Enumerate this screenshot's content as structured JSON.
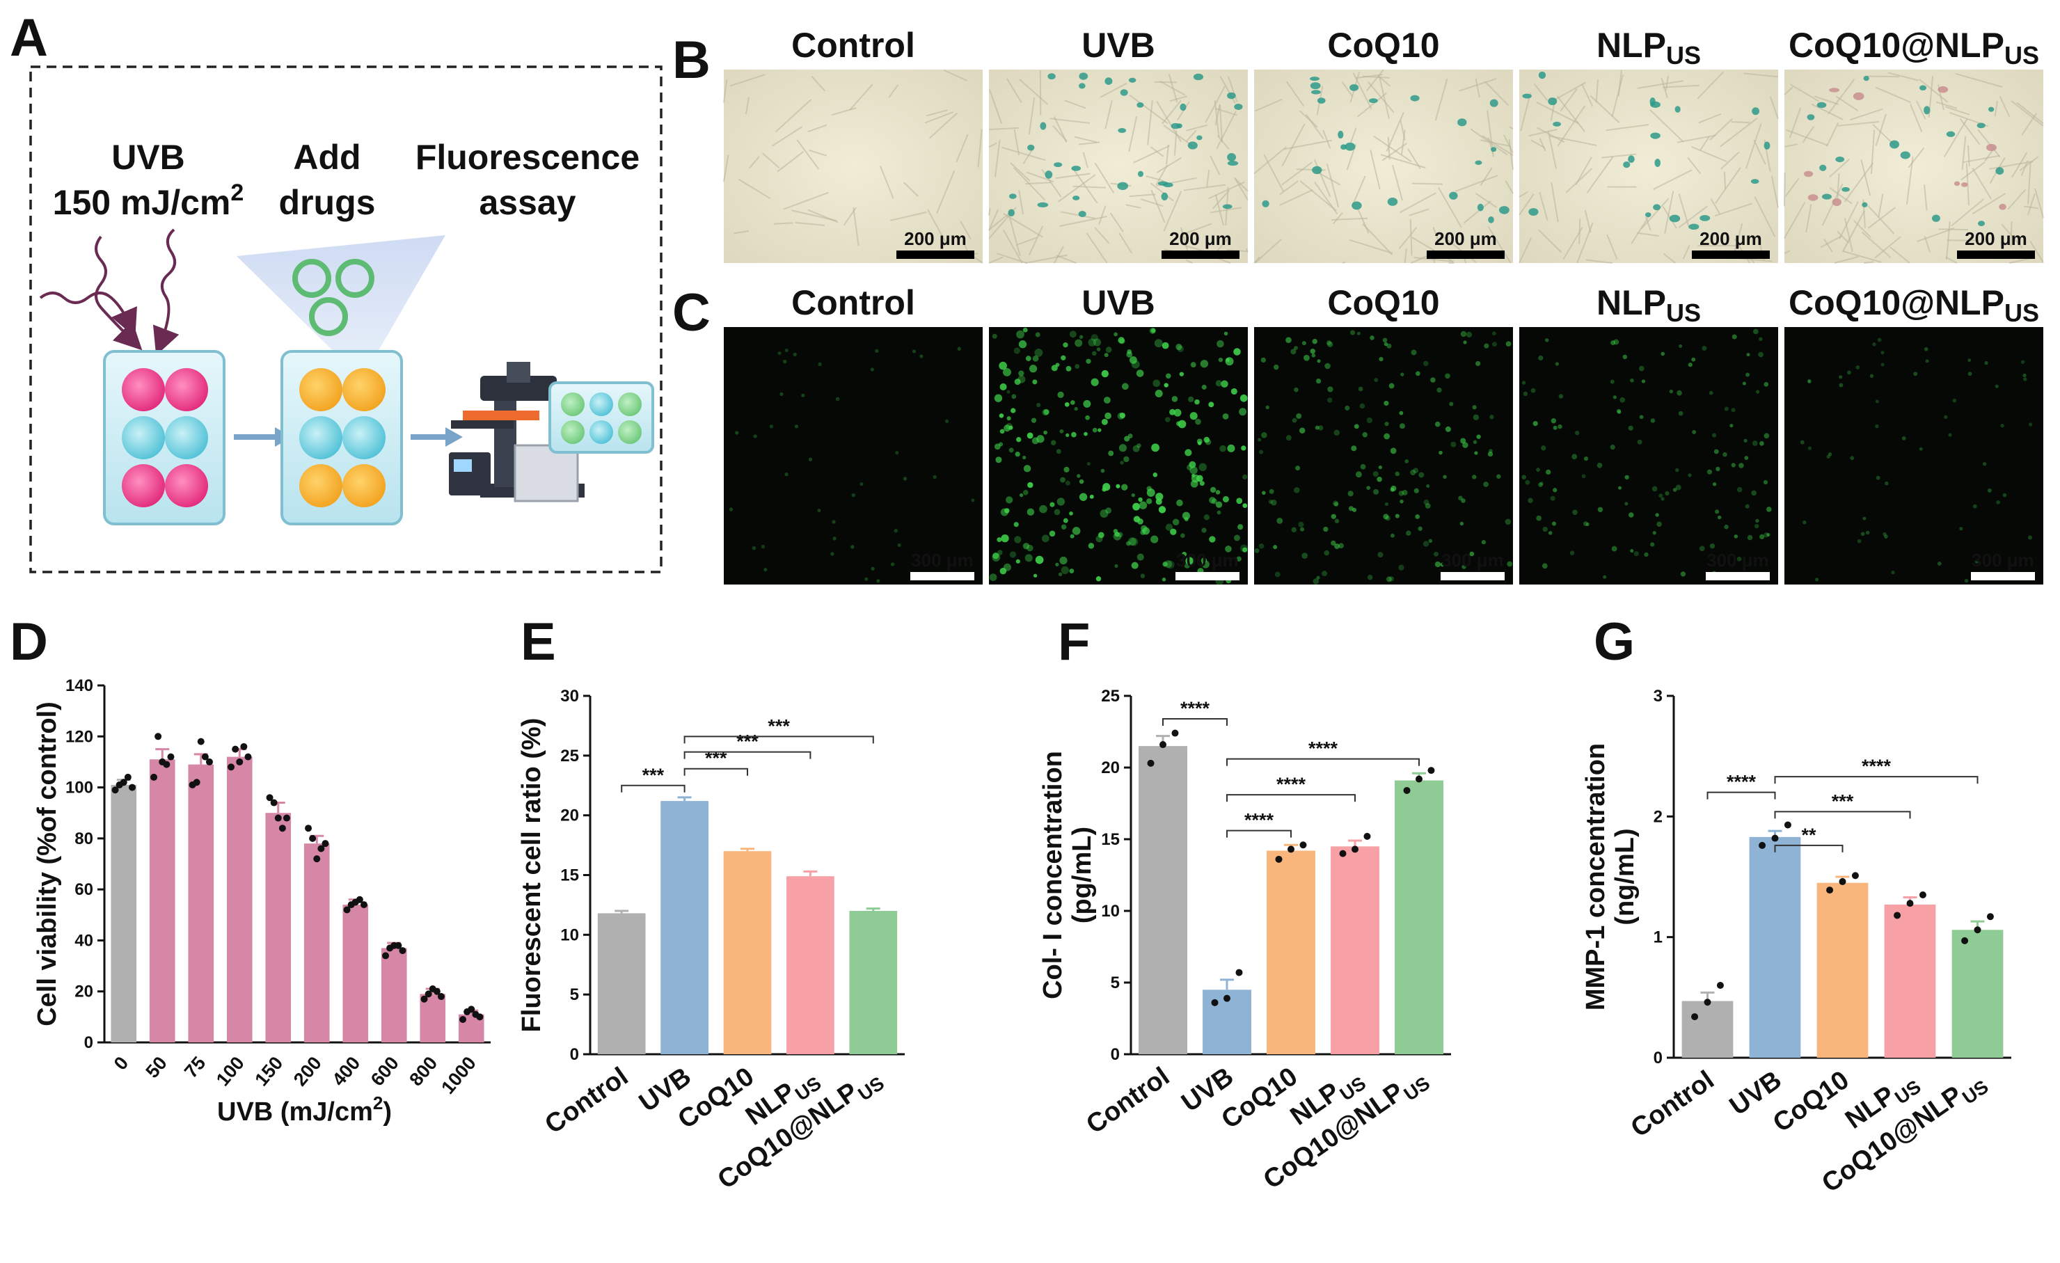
{
  "panels": {
    "A": {
      "letter": "A",
      "step1_line1": "UVB",
      "step1_line2": "150 mJ/cm",
      "step1_sup": "2",
      "step2_line1": "Add",
      "step2_line2": "drugs",
      "step3_line1": "Fluorescence",
      "step3_line2": "assay"
    },
    "B": {
      "letter": "B",
      "groups": [
        {
          "base": "Control",
          "sub": ""
        },
        {
          "base": "UVB",
          "sub": ""
        },
        {
          "base": "CoQ10",
          "sub": ""
        },
        {
          "base": "NLP",
          "sub": "US"
        },
        {
          "base": "CoQ10@NLP",
          "sub": "US"
        }
      ],
      "scale_bar": "200 μm"
    },
    "C": {
      "letter": "C",
      "groups": [
        {
          "base": "Control",
          "sub": ""
        },
        {
          "base": "UVB",
          "sub": ""
        },
        {
          "base": "CoQ10",
          "sub": ""
        },
        {
          "base": "NLP",
          "sub": "US"
        },
        {
          "base": "CoQ10@NLP",
          "sub": "US"
        }
      ],
      "scale_bar": "300 μm"
    }
  },
  "colors": {
    "control": "#b0b0b0",
    "uvb": "#8fb3d4",
    "coq10": "#f9b67c",
    "nlp": "#f7a1a6",
    "coq10nlp": "#8fcb94",
    "dose": "#d687a6"
  },
  "chart_data": [
    {
      "panel": "D",
      "type": "bar",
      "categories": [
        "0",
        "50",
        "75",
        "100",
        "150",
        "200",
        "400",
        "600",
        "800",
        "1000"
      ],
      "values": [
        101,
        111,
        109,
        112,
        90,
        78,
        54,
        37,
        19,
        11
      ],
      "errors": [
        2,
        4,
        4,
        3,
        4,
        3,
        2,
        2,
        2,
        1.5
      ],
      "points": [
        [
          99,
          101,
          102,
          104,
          100
        ],
        [
          104,
          120,
          110,
          109,
          112
        ],
        [
          101,
          102,
          118,
          112,
          110
        ],
        [
          108,
          115,
          110,
          116,
          112
        ],
        [
          96,
          94,
          88,
          84,
          88
        ],
        [
          84,
          80,
          72,
          76,
          78
        ],
        [
          52,
          54,
          55,
          56,
          54
        ],
        [
          34,
          37,
          38,
          38,
          36
        ],
        [
          17,
          19,
          21,
          20,
          18
        ],
        [
          9,
          12,
          13,
          11,
          10
        ]
      ],
      "colors": [
        "#b0b0b0",
        "#d687a6",
        "#d687a6",
        "#d687a6",
        "#d687a6",
        "#d687a6",
        "#d687a6",
        "#d687a6",
        "#d687a6",
        "#d687a6"
      ],
      "ylim": [
        0,
        140
      ],
      "yticks": [
        0,
        20,
        40,
        60,
        80,
        100,
        120,
        140
      ],
      "ylabel": "Cell viability (%of control)",
      "xlabel_base": "UVB (mJ/cm",
      "xlabel_sup": "2",
      "xlabel_tail": ")"
    },
    {
      "panel": "E",
      "type": "bar",
      "categories": [
        {
          "base": "Control",
          "sub": ""
        },
        {
          "base": "UVB",
          "sub": ""
        },
        {
          "base": "CoQ10",
          "sub": ""
        },
        {
          "base": "NLP",
          "sub": "US"
        },
        {
          "base": "CoQ10@NLP",
          "sub": "US"
        }
      ],
      "values": [
        11.8,
        21.2,
        17.0,
        14.9,
        12.0
      ],
      "errors": [
        0.2,
        0.3,
        0.2,
        0.4,
        0.2
      ],
      "points": [],
      "colors": [
        "#b0b0b0",
        "#8fb3d4",
        "#f9b67c",
        "#f7a1a6",
        "#8fcb94"
      ],
      "ylim": [
        0,
        30
      ],
      "yticks": [
        0,
        5,
        10,
        15,
        20,
        25,
        30
      ],
      "ylabel": "Fluorescent cell ratio (%)",
      "significance": [
        {
          "from": 0,
          "to": 1,
          "y": 22.5,
          "label": "***"
        },
        {
          "from": 1,
          "to": 2,
          "y": 23.9,
          "label": "***"
        },
        {
          "from": 1,
          "to": 3,
          "y": 25.3,
          "label": "***"
        },
        {
          "from": 1,
          "to": 4,
          "y": 26.6,
          "label": "***"
        }
      ]
    },
    {
      "panel": "F",
      "type": "bar",
      "categories": [
        {
          "base": "Control",
          "sub": ""
        },
        {
          "base": "UVB",
          "sub": ""
        },
        {
          "base": "CoQ10",
          "sub": ""
        },
        {
          "base": "NLP",
          "sub": "US"
        },
        {
          "base": "CoQ10@NLP",
          "sub": "US"
        }
      ],
      "values": [
        21.5,
        4.5,
        14.2,
        14.5,
        19.1
      ],
      "errors": [
        0.7,
        0.7,
        0.4,
        0.4,
        0.5
      ],
      "points": [
        [
          20.3,
          21.6,
          22.4
        ],
        [
          3.6,
          3.9,
          5.7
        ],
        [
          13.6,
          14.3,
          14.6
        ],
        [
          14.0,
          14.3,
          15.2
        ],
        [
          18.4,
          19.2,
          19.8
        ]
      ],
      "colors": [
        "#b0b0b0",
        "#8fb3d4",
        "#f9b67c",
        "#f7a1a6",
        "#8fcb94"
      ],
      "ylim": [
        0,
        25
      ],
      "yticks": [
        0,
        5,
        10,
        15,
        20,
        25
      ],
      "ylabel_line1": "Col- I concentration",
      "ylabel_line2": "(pg/mL)",
      "significance": [
        {
          "from": 0,
          "to": 1,
          "y": 23.4,
          "label": "****"
        },
        {
          "from": 1,
          "to": 2,
          "y": 15.6,
          "label": "****"
        },
        {
          "from": 1,
          "to": 3,
          "y": 18.1,
          "label": "****"
        },
        {
          "from": 1,
          "to": 4,
          "y": 20.6,
          "label": "****"
        }
      ]
    },
    {
      "panel": "G",
      "type": "bar",
      "categories": [
        {
          "base": "Control",
          "sub": ""
        },
        {
          "base": "UVB",
          "sub": ""
        },
        {
          "base": "CoQ10",
          "sub": ""
        },
        {
          "base": "NLP",
          "sub": "US"
        },
        {
          "base": "CoQ10@NLP",
          "sub": "US"
        }
      ],
      "values": [
        0.47,
        1.83,
        1.45,
        1.27,
        1.06
      ],
      "errors": [
        0.07,
        0.05,
        0.05,
        0.06,
        0.07
      ],
      "points": [
        [
          0.34,
          0.46,
          0.6
        ],
        [
          1.76,
          1.82,
          1.93
        ],
        [
          1.39,
          1.46,
          1.51
        ],
        [
          1.18,
          1.28,
          1.35
        ],
        [
          0.97,
          1.06,
          1.17
        ]
      ],
      "colors": [
        "#b0b0b0",
        "#8fb3d4",
        "#f9b67c",
        "#f7a1a6",
        "#8fcb94"
      ],
      "ylim": [
        0,
        3
      ],
      "yticks": [
        0,
        1,
        2,
        3
      ],
      "ylabel_line1": "MMP-1 concentration",
      "ylabel_line2": "(ng/mL)",
      "significance": [
        {
          "from": 0,
          "to": 1,
          "y": 2.2,
          "label": "****"
        },
        {
          "from": 1,
          "to": 2,
          "y": 1.76,
          "label": "**"
        },
        {
          "from": 1,
          "to": 3,
          "y": 2.04,
          "label": "***"
        },
        {
          "from": 1,
          "to": 4,
          "y": 2.33,
          "label": "****"
        }
      ]
    }
  ]
}
